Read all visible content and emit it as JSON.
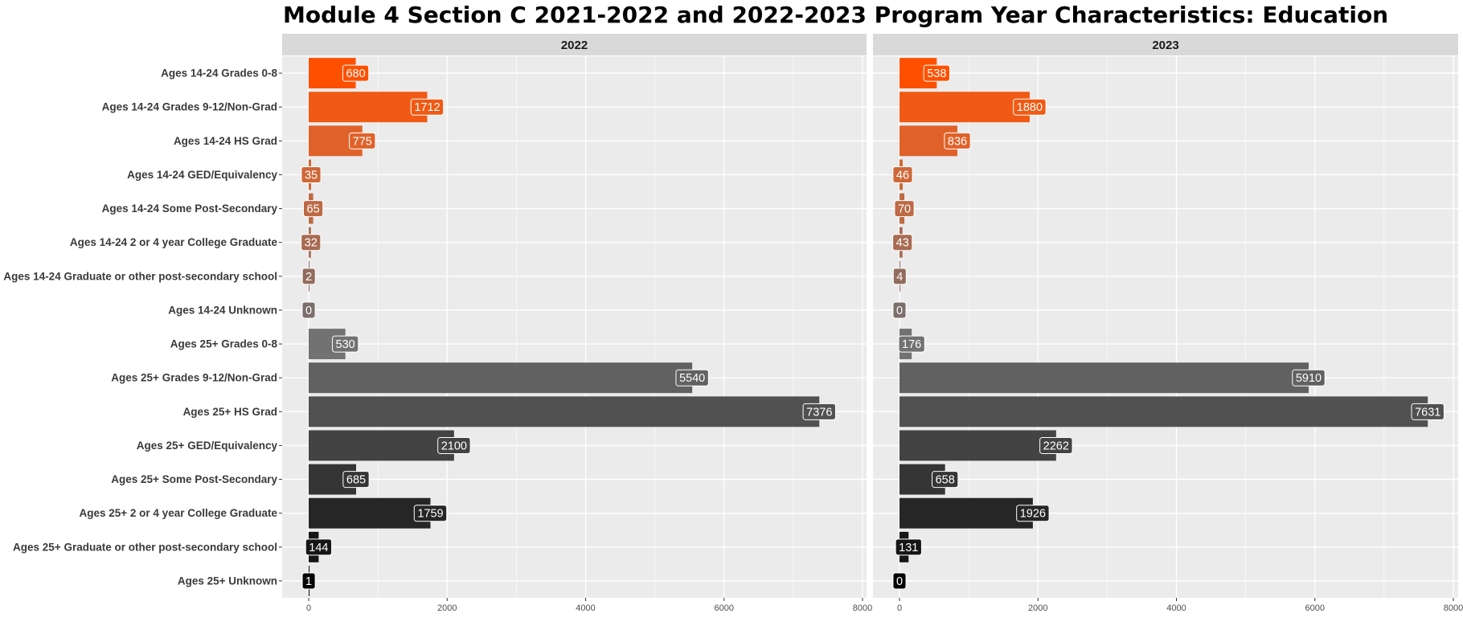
{
  "chart_data": {
    "type": "bar",
    "orientation": "horizontal",
    "title": "Module 4 Section C 2021-2022 and 2022-2023 Program Year Characteristics: Education",
    "categories": [
      "Ages 14-24 Grades 0-8",
      "Ages 14-24 Grades 9-12/Non-Grad",
      "Ages 14-24 HS Grad",
      "Ages 14-24 GED/Equivalency",
      "Ages 14-24 Some Post-Secondary",
      "Ages 14-24 2 or 4 year College Graduate",
      "Ages 14-24 Graduate or other post-secondary school",
      "Ages 14-24 Unknown",
      "Ages 25+ Grades 0-8",
      "Ages 25+ Grades 9-12/Non-Grad",
      "Ages 25+ HS Grad",
      "Ages 25+ GED/Equivalency",
      "Ages 25+ Some Post-Secondary",
      "Ages 25+ 2 or 4 year College Graduate",
      "Ages 25+ Graduate or other post-secondary school",
      "Ages 25+ Unknown"
    ],
    "bar_colors": [
      "#ff5000",
      "#f05a14",
      "#e0622a",
      "#cf6838",
      "#bd6a45",
      "#a86b52",
      "#926c5e",
      "#7b6e6b",
      "#727272",
      "#616161",
      "#515151",
      "#434343",
      "#353535",
      "#262626",
      "#161616",
      "#050505"
    ],
    "panels": [
      {
        "strip": "2022",
        "values": [
          680,
          1712,
          775,
          35,
          65,
          32,
          2,
          0,
          530,
          5540,
          7376,
          2100,
          685,
          1759,
          144,
          1
        ]
      },
      {
        "strip": "2023",
        "values": [
          538,
          1880,
          836,
          46,
          70,
          43,
          4,
          0,
          176,
          5910,
          7631,
          2262,
          658,
          1926,
          131,
          0
        ]
      }
    ],
    "xlim": [
      0,
      8000
    ],
    "x_ticks": [
      0,
      2000,
      4000,
      6000,
      8000
    ],
    "grid": true,
    "legend": "none"
  },
  "colors": {
    "panel_background": "#ebebeb",
    "strip_background": "#d9d9d9",
    "grid": "#ffffff"
  }
}
